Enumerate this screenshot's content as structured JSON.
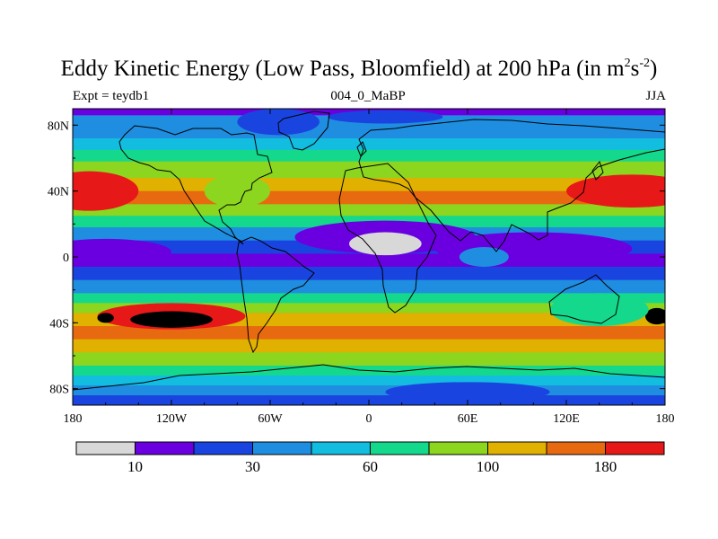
{
  "chart_data": {
    "type": "heatmap",
    "title_main": "Eddy Kinetic Energy (Low Pass, Bloomfield) at 200 hPa (in m",
    "title_unit_m_exp": "2",
    "title_s": "s",
    "title_unit_s_exp": "-2",
    "title_close": ")",
    "subtitle_left": "Expt = teydb1",
    "subtitle_center": "004_0_MaBP",
    "subtitle_right": "JJA",
    "x_range": [
      -180,
      180
    ],
    "y_range": [
      -90,
      90
    ],
    "x_ticks": [
      {
        "value": -180,
        "label": "180"
      },
      {
        "value": -120,
        "label": "120W"
      },
      {
        "value": -60,
        "label": "60W"
      },
      {
        "value": 0,
        "label": "0"
      },
      {
        "value": 60,
        "label": "60E"
      },
      {
        "value": 120,
        "label": "120E"
      },
      {
        "value": 180,
        "label": "180"
      }
    ],
    "y_ticks": [
      {
        "value": 80,
        "label": "80N"
      },
      {
        "value": 40,
        "label": "40N"
      },
      {
        "value": 0,
        "label": "0"
      },
      {
        "value": -40,
        "label": "40S"
      },
      {
        "value": -80,
        "label": "80S"
      }
    ],
    "colorbar": {
      "colors": [
        "#d8d8d8",
        "#6a00e0",
        "#1a44e0",
        "#1f8ee0",
        "#12bde0",
        "#14d88c",
        "#8cd620",
        "#e0b100",
        "#e86a10",
        "#e61818"
      ],
      "labels": [
        {
          "after_box": 1,
          "text": "10"
        },
        {
          "after_box": 3,
          "text": "30"
        },
        {
          "after_box": 5,
          "text": "60"
        },
        {
          "after_box": 7,
          "text": "100"
        },
        {
          "after_box": 9,
          "text": "180"
        }
      ]
    },
    "bands": [
      {
        "lat": 90,
        "level": 1
      },
      {
        "lat": 86,
        "level": 3
      },
      {
        "lat": 80,
        "level": 3
      },
      {
        "lat": 72,
        "level": 4
      },
      {
        "lat": 65,
        "level": 5
      },
      {
        "lat": 58,
        "level": 6
      },
      {
        "lat": 48,
        "level": 7
      },
      {
        "lat": 40,
        "level": 8
      },
      {
        "lat": 32,
        "level": 6
      },
      {
        "lat": 25,
        "level": 5
      },
      {
        "lat": 18,
        "level": 3
      },
      {
        "lat": 10,
        "level": 2
      },
      {
        "lat": 2,
        "level": 1
      },
      {
        "lat": -6,
        "level": 2
      },
      {
        "lat": -14,
        "level": 3
      },
      {
        "lat": -22,
        "level": 5
      },
      {
        "lat": -28,
        "level": 6
      },
      {
        "lat": -34,
        "level": 7
      },
      {
        "lat": -42,
        "level": 8
      },
      {
        "lat": -50,
        "level": 7
      },
      {
        "lat": -58,
        "level": 6
      },
      {
        "lat": -66,
        "level": 5
      },
      {
        "lat": -72,
        "level": 4
      },
      {
        "lat": -78,
        "level": 3
      },
      {
        "lat": -84,
        "level": 2
      },
      {
        "lat": -90,
        "level": 1
      }
    ],
    "blobs": [
      {
        "lon": -170,
        "lat": 40,
        "rlon": 30,
        "rlat": 12,
        "level": 9
      },
      {
        "lon": 160,
        "lat": 40,
        "rlon": 40,
        "rlat": 10,
        "level": 9
      },
      {
        "lon": -120,
        "lat": -36,
        "rlon": 45,
        "rlat": 8,
        "level": 9
      },
      {
        "lon": -120,
        "lat": -38,
        "rlon": 25,
        "rlat": 5,
        "level": 10
      },
      {
        "lon": -160,
        "lat": -37,
        "rlon": 5,
        "rlat": 3,
        "level": 10
      },
      {
        "lon": 175,
        "lat": -36,
        "rlon": 7,
        "rlat": 5,
        "level": 10
      },
      {
        "lon": -80,
        "lat": 40,
        "rlon": 20,
        "rlat": 10,
        "level": 6
      },
      {
        "lon": -55,
        "lat": 82,
        "rlon": 25,
        "rlat": 8,
        "level": 2
      },
      {
        "lon": 10,
        "lat": 85,
        "rlon": 35,
        "rlat": 4,
        "level": 2
      },
      {
        "lon": 10,
        "lat": 12,
        "rlon": 55,
        "rlat": 10,
        "level": 1
      },
      {
        "lon": 100,
        "lat": 5,
        "rlon": 60,
        "rlat": 10,
        "level": 1
      },
      {
        "lon": -160,
        "lat": 3,
        "rlon": 40,
        "rlat": 8,
        "level": 1
      },
      {
        "lon": 10,
        "lat": 8,
        "rlon": 22,
        "rlat": 7,
        "level": 0
      },
      {
        "lon": 70,
        "lat": 0,
        "rlon": 15,
        "rlat": 6,
        "level": 3
      },
      {
        "lon": 60,
        "lat": -82,
        "rlon": 50,
        "rlat": 6,
        "level": 2
      },
      {
        "lon": 140,
        "lat": -32,
        "rlon": 30,
        "rlat": 10,
        "level": 5
      }
    ]
  }
}
